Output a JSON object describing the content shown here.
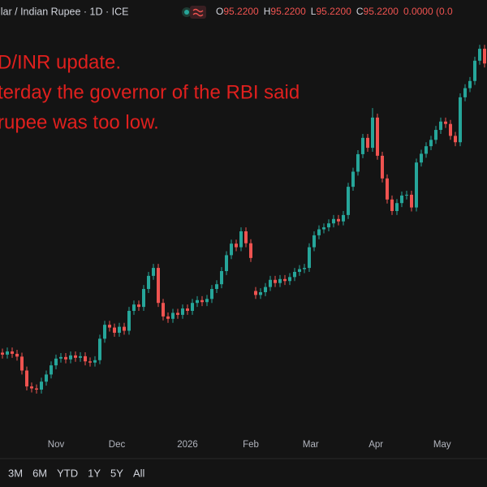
{
  "header": {
    "symbol": "llar / Indian Rupee · 1D · ICE",
    "ohlc": [
      {
        "key": "O",
        "value": "95.2200"
      },
      {
        "key": "H",
        "value": "95.2200"
      },
      {
        "key": "L",
        "value": "95.2200"
      },
      {
        "key": "C",
        "value": "95.2200"
      }
    ],
    "change": "0.0000 (0.0"
  },
  "annotation": [
    "D/INR update.",
    "terday the governor of the RBI said",
    "rupee was too low."
  ],
  "chart_data": {
    "type": "candlestick",
    "up_color": "#26a69a",
    "down_color": "#ef5350",
    "xlim": [
      -0.5,
      99.5
    ],
    "ylim": [
      86,
      96
    ],
    "xticks": [
      {
        "value": 11,
        "label": "Nov"
      },
      {
        "value": 23.5,
        "label": "Dec"
      },
      {
        "value": 38,
        "label": "2026"
      },
      {
        "value": 51,
        "label": "Feb"
      },
      {
        "value": 63.3,
        "label": "Mar"
      },
      {
        "value": 76.7,
        "label": "Apr"
      },
      {
        "value": 90.3,
        "label": "May"
      }
    ],
    "open": [
      87.95,
      87.9,
      87.98,
      87.92,
      87.85,
      87.5,
      87.1,
      87.05,
      87.02,
      87.22,
      87.4,
      87.63,
      87.8,
      87.84,
      87.78,
      87.88,
      87.82,
      87.86,
      87.73,
      87.7,
      87.76,
      88.3,
      88.65,
      88.58,
      88.45,
      88.6,
      88.5,
      89.0,
      89.16,
      89.1,
      89.55,
      89.88,
      90.08,
      89.2,
      88.86,
      88.8,
      88.95,
      88.9,
      89.06,
      89.0,
      89.2,
      89.27,
      89.22,
      89.3,
      89.55,
      89.67,
      90.0,
      90.4,
      90.69,
      90.6,
      91.0,
      90.7,
      89.5,
      89.4,
      89.47,
      89.6,
      89.78,
      89.7,
      89.8,
      89.75,
      89.85,
      89.98,
      90.05,
      90.08,
      90.6,
      90.9,
      91.05,
      91.1,
      91.2,
      91.31,
      91.25,
      91.41,
      92.12,
      92.5,
      92.94,
      93.35,
      93.1,
      93.86,
      92.9,
      92.33,
      91.8,
      91.51,
      91.71,
      91.9,
      91.92,
      91.6,
      92.73,
      92.95,
      93.14,
      93.3,
      93.55,
      93.76,
      93.7,
      93.4,
      93.24,
      94.37,
      94.6,
      94.78,
      95.29,
      95.59
    ],
    "high": [
      88.05,
      88.08,
      88.08,
      88.02,
      87.95,
      87.6,
      87.2,
      87.15,
      87.32,
      87.5,
      87.73,
      87.9,
      87.94,
      87.94,
      87.98,
      87.98,
      87.96,
      87.96,
      87.83,
      87.86,
      88.4,
      88.75,
      88.75,
      88.68,
      88.7,
      88.7,
      89.1,
      89.26,
      89.26,
      89.65,
      89.98,
      90.18,
      90.18,
      89.3,
      88.96,
      89.05,
      89.05,
      89.16,
      89.16,
      89.3,
      89.37,
      89.37,
      89.4,
      89.65,
      89.77,
      90.1,
      90.5,
      90.79,
      90.79,
      91.1,
      91.1,
      90.8,
      89.6,
      89.57,
      89.7,
      89.88,
      89.88,
      89.9,
      89.9,
      89.95,
      90.08,
      90.15,
      90.18,
      90.7,
      91.0,
      91.15,
      91.2,
      91.3,
      91.41,
      91.41,
      91.51,
      92.22,
      92.6,
      93.04,
      93.45,
      93.45,
      94.1,
      93.96,
      93.0,
      92.43,
      91.9,
      91.81,
      92.0,
      92.02,
      92.02,
      92.83,
      93.05,
      93.24,
      93.4,
      93.65,
      93.86,
      93.86,
      93.8,
      93.5,
      94.47,
      94.7,
      94.88,
      95.39,
      95.69,
      95.69
    ],
    "low": [
      87.8,
      87.8,
      87.82,
      87.75,
      87.4,
      87.0,
      86.95,
      86.92,
      86.92,
      87.12,
      87.3,
      87.53,
      87.7,
      87.68,
      87.68,
      87.72,
      87.72,
      87.63,
      87.6,
      87.6,
      87.66,
      88.2,
      88.48,
      88.35,
      88.35,
      88.4,
      88.4,
      88.9,
      89.0,
      89.0,
      89.45,
      89.78,
      89.1,
      88.76,
      88.7,
      88.7,
      88.8,
      88.8,
      88.9,
      88.9,
      89.1,
      89.12,
      89.12,
      89.2,
      89.45,
      89.57,
      89.9,
      90.3,
      90.5,
      90.5,
      90.6,
      90.23,
      89.3,
      89.3,
      89.37,
      89.5,
      89.6,
      89.6,
      89.65,
      89.65,
      89.75,
      89.88,
      89.95,
      89.98,
      90.5,
      90.8,
      90.95,
      91.0,
      91.1,
      91.15,
      91.15,
      91.31,
      92.02,
      92.4,
      92.84,
      93.0,
      93.0,
      92.8,
      92.23,
      91.7,
      91.41,
      91.41,
      91.61,
      91.8,
      91.5,
      91.5,
      92.63,
      92.85,
      93.04,
      93.2,
      93.45,
      93.6,
      93.3,
      93.14,
      93.14,
      94.27,
      94.5,
      94.68,
      95.19,
      95.12
    ],
    "close": [
      87.9,
      87.98,
      87.92,
      87.85,
      87.5,
      87.1,
      87.05,
      87.02,
      87.22,
      87.4,
      87.63,
      87.8,
      87.84,
      87.78,
      87.88,
      87.82,
      87.86,
      87.73,
      87.7,
      87.76,
      88.3,
      88.65,
      88.58,
      88.45,
      88.6,
      88.5,
      89.0,
      89.16,
      89.1,
      89.55,
      89.88,
      90.08,
      89.2,
      88.86,
      88.8,
      88.95,
      88.9,
      89.06,
      89.0,
      89.2,
      89.27,
      89.22,
      89.3,
      89.55,
      89.67,
      90.0,
      90.4,
      90.69,
      90.6,
      91.0,
      90.7,
      90.33,
      89.4,
      89.47,
      89.6,
      89.78,
      89.7,
      89.8,
      89.75,
      89.85,
      89.98,
      90.05,
      90.08,
      90.6,
      90.9,
      91.05,
      91.1,
      91.2,
      91.31,
      91.25,
      91.41,
      92.12,
      92.5,
      92.94,
      93.35,
      93.1,
      93.86,
      92.9,
      92.33,
      91.8,
      91.51,
      91.71,
      91.9,
      91.92,
      91.6,
      92.73,
      92.95,
      93.14,
      93.3,
      93.55,
      93.76,
      93.7,
      93.4,
      93.24,
      94.37,
      94.6,
      94.78,
      95.29,
      95.59,
      95.22
    ]
  },
  "ranges": [
    "3M",
    "6M",
    "YTD",
    "1Y",
    "5Y",
    "All"
  ]
}
